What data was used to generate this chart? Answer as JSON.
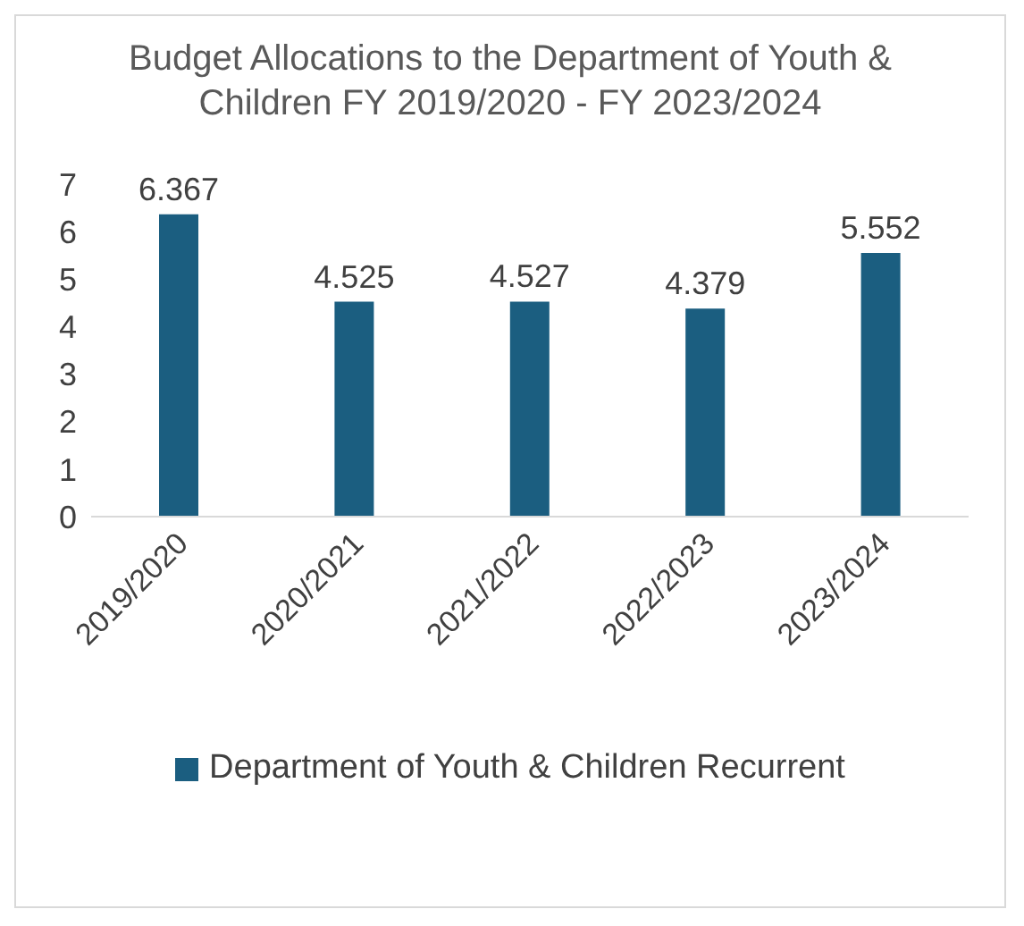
{
  "chart_data": {
    "type": "bar",
    "title": "Budget Allocations to the Department of Youth & Children FY 2019/2020 - FY 2023/2024",
    "categories": [
      "2019/2020",
      "2020/2021",
      "2021/2022",
      "2022/2023",
      "2023/2024"
    ],
    "series": [
      {
        "name": "Department of Youth & Children Recurrent",
        "color": "#1b5e80",
        "values": [
          6.367,
          4.525,
          4.527,
          4.379,
          5.552
        ]
      }
    ],
    "ylim": [
      0,
      7
    ],
    "yticks": [
      0,
      1,
      2,
      3,
      4,
      5,
      6,
      7
    ],
    "grid": false,
    "legend": "bottom",
    "data_labels": true
  }
}
